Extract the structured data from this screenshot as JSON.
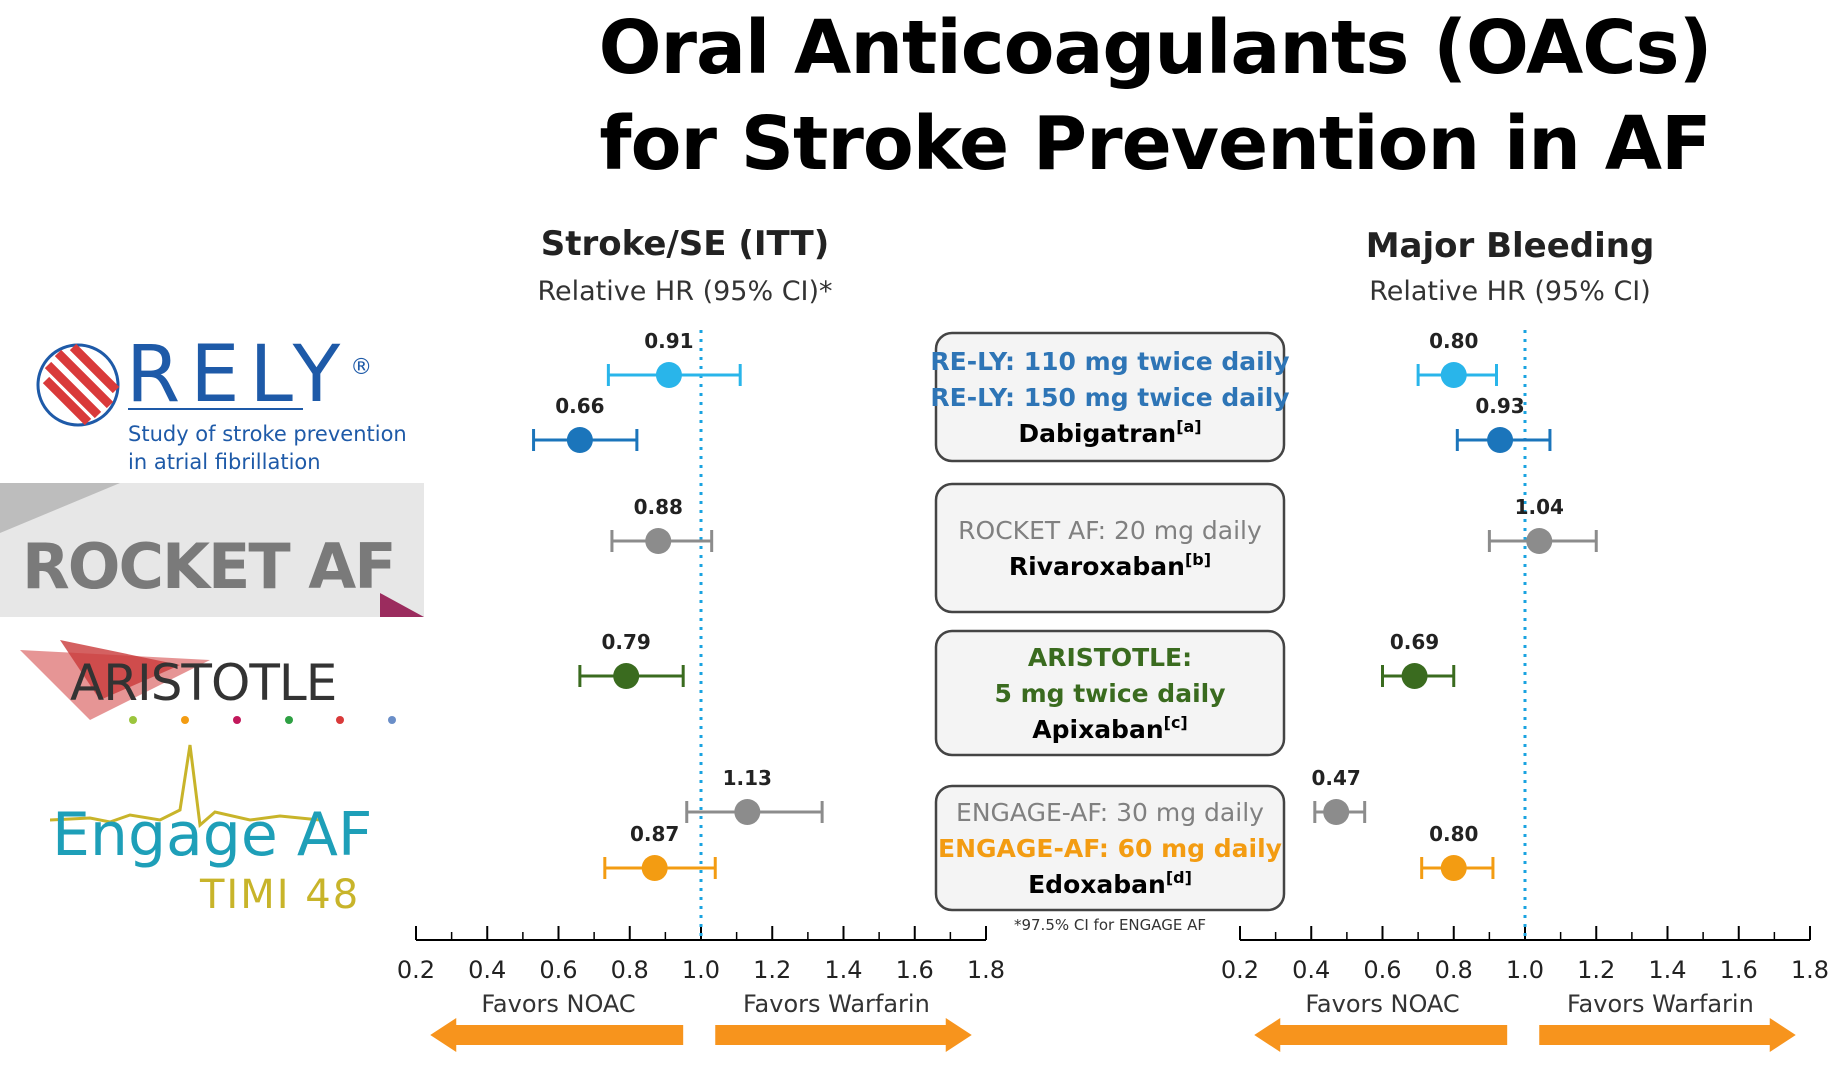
{
  "title_line1": "Oral Anticoagulants (OACs)",
  "title_line2": "for Stroke Prevention in AF",
  "logos": {
    "rely": {
      "word": "RELY",
      "reg": "®",
      "sub1": "Study of stroke prevention",
      "sub2": "in atrial fibrillation"
    },
    "rocket": {
      "word": "ROCKET AF"
    },
    "aristotle": {
      "word": "ARISTOTLE"
    },
    "engage": {
      "word": "Engage AF",
      "sub": "TIMI 48"
    }
  },
  "legend_boxes": [
    {
      "lines": [
        {
          "text": "RE-LY: 110 mg twice daily",
          "color": "#2e75b6",
          "bold": true
        },
        {
          "text": "RE-LY: 150 mg twice daily",
          "color": "#2e75b6",
          "bold": true
        },
        {
          "text": "Dabigatran",
          "sup": "[a]",
          "color": "#000000",
          "bold": true
        }
      ]
    },
    {
      "lines": [
        {
          "text": "ROCKET AF: 20 mg daily",
          "color": "#808080",
          "bold": false
        },
        {
          "text": "Rivaroxaban",
          "sup": "[b]",
          "color": "#000000",
          "bold": true
        }
      ]
    },
    {
      "lines": [
        {
          "text": "ARISTOTLE:",
          "color": "#3a6b1f",
          "bold": true
        },
        {
          "text": "5 mg twice daily",
          "color": "#3a6b1f",
          "bold": true
        },
        {
          "text": "Apixaban",
          "sup": "[c]",
          "color": "#000000",
          "bold": true
        }
      ]
    },
    {
      "lines": [
        {
          "text": "ENGAGE-AF: 30 mg daily",
          "color": "#808080",
          "bold": false
        },
        {
          "text": "ENGAGE-AF: 60 mg daily",
          "color": "#f39c12",
          "bold": true
        },
        {
          "text": "Edoxaban",
          "sup": "[d]",
          "color": "#000000",
          "bold": true
        }
      ]
    }
  ],
  "footnote": "*97.5% CI for ENGAGE AF",
  "chart_data": [
    {
      "type": "scatter",
      "title": "Stroke/SE (ITT)",
      "subtitle": "Relative HR (95% CI)*",
      "xlim": [
        0.2,
        1.8
      ],
      "xticks": [
        "0.2",
        "0.4",
        "0.6",
        "0.8",
        "1.0",
        "1.2",
        "1.4",
        "1.6",
        "1.8"
      ],
      "reference_line": 1.0,
      "favors_left": "Favors NOAC",
      "favors_right": "Favors Warfarin",
      "points": [
        {
          "hr": 0.91,
          "lo": 0.74,
          "hi": 1.11,
          "color": "#29b5ea",
          "label": "0.91"
        },
        {
          "hr": 0.66,
          "lo": 0.53,
          "hi": 0.82,
          "color": "#1b75bb",
          "label": "0.66"
        },
        {
          "hr": 0.88,
          "lo": 0.75,
          "hi": 1.03,
          "color": "#8c8c8c",
          "label": "0.88"
        },
        {
          "hr": 0.79,
          "lo": 0.66,
          "hi": 0.95,
          "color": "#3a6b1f",
          "label": "0.79"
        },
        {
          "hr": 1.13,
          "lo": 0.96,
          "hi": 1.34,
          "color": "#8c8c8c",
          "label": "1.13"
        },
        {
          "hr": 0.87,
          "lo": 0.73,
          "hi": 1.04,
          "color": "#f39c12",
          "label": "0.87"
        }
      ]
    },
    {
      "type": "scatter",
      "title": "Major Bleeding",
      "subtitle": "Relative HR (95% CI)",
      "xlim": [
        0.2,
        1.8
      ],
      "xticks": [
        "0.2",
        "0.4",
        "0.6",
        "0.8",
        "1.0",
        "1.2",
        "1.4",
        "1.6",
        "1.8"
      ],
      "reference_line": 1.0,
      "favors_left": "Favors NOAC",
      "favors_right": "Favors Warfarin",
      "points": [
        {
          "hr": 0.8,
          "lo": 0.7,
          "hi": 0.92,
          "color": "#29b5ea",
          "label": "0.80"
        },
        {
          "hr": 0.93,
          "lo": 0.81,
          "hi": 1.07,
          "color": "#1b75bb",
          "label": "0.93"
        },
        {
          "hr": 1.04,
          "lo": 0.9,
          "hi": 1.2,
          "color": "#8c8c8c",
          "label": "1.04"
        },
        {
          "hr": 0.69,
          "lo": 0.6,
          "hi": 0.8,
          "color": "#3a6b1f",
          "label": "0.69"
        },
        {
          "hr": 0.47,
          "lo": 0.41,
          "hi": 0.55,
          "color": "#8c8c8c",
          "label": "0.47"
        },
        {
          "hr": 0.8,
          "lo": 0.71,
          "hi": 0.91,
          "color": "#f39c12",
          "label": "0.80"
        }
      ]
    }
  ]
}
